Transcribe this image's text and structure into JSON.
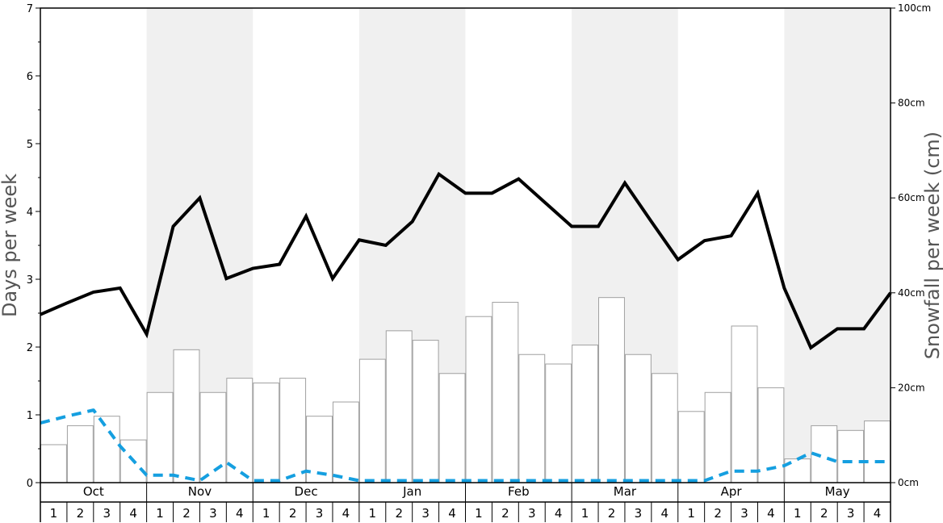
{
  "chart_data": {
    "type": "bar",
    "months": [
      "Oct",
      "Nov",
      "Dec",
      "Jan",
      "Feb",
      "Mar",
      "Apr",
      "May"
    ],
    "week_labels": [
      "1",
      "2",
      "3",
      "4"
    ],
    "ylabel_left": "Days per week",
    "ylabel_right": "Snowfall per week (cm)",
    "ylim_left": [
      0,
      7
    ],
    "ylim_right": [
      0,
      100
    ],
    "left_ticks": [
      "0",
      "1",
      "2",
      "3",
      "4",
      "5",
      "6",
      "7"
    ],
    "right_ticks": [
      "0cm",
      "20cm",
      "40cm",
      "60cm",
      "80cm",
      "100cm"
    ],
    "bar_values": [
      8,
      12,
      14,
      9,
      19,
      28,
      19,
      22,
      21,
      22,
      14,
      17,
      26,
      32,
      30,
      23,
      35,
      38,
      27,
      25,
      29,
      39,
      27,
      23,
      15,
      19,
      33,
      20,
      5,
      12,
      11,
      13
    ],
    "line_values": [
      2.48,
      2.65,
      2.81,
      2.87,
      2.19,
      3.78,
      4.2,
      3.01,
      3.16,
      3.22,
      3.93,
      3.01,
      3.58,
      3.5,
      3.85,
      4.55,
      4.27,
      4.27,
      4.48,
      4.13,
      3.78,
      3.78,
      4.42,
      3.85,
      3.29,
      3.57,
      3.64,
      4.27,
      2.87,
      1.99,
      2.27,
      2.27,
      2.8
    ],
    "dashed_values": [
      0.88,
      0.98,
      1.07,
      0.54,
      0.11,
      0.11,
      0.03,
      0.3,
      0.03,
      0.03,
      0.17,
      0.11,
      0.03,
      0.03,
      0.03,
      0.03,
      0.03,
      0.03,
      0.03,
      0.03,
      0.03,
      0.03,
      0.03,
      0.03,
      0.03,
      0.03,
      0.17,
      0.17,
      0.25,
      0.44,
      0.31,
      0.31,
      0.31
    ],
    "colors": {
      "shade": "#f0f0f0",
      "bar_fill": "#ffffff",
      "bar_stroke": "#a0a0a0",
      "line": "#000000",
      "dashed": "#159fe0",
      "axis": "#000000"
    }
  }
}
